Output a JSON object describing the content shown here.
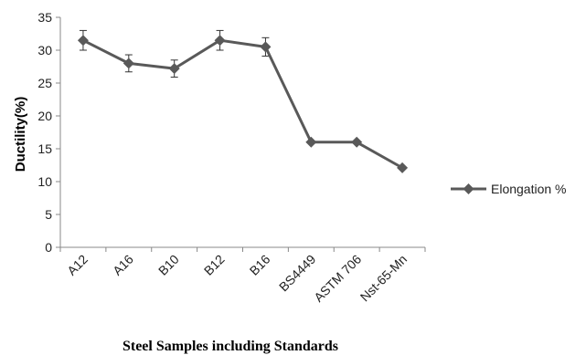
{
  "chart_data": {
    "type": "line",
    "categories": [
      "A12",
      "A16",
      "B10",
      "B12",
      "B16",
      "BS4449",
      "ASTM 706",
      "Nst-65-Mn"
    ],
    "series": [
      {
        "name": "Elongation %",
        "values": [
          31.5,
          28,
          27.2,
          31.5,
          30.5,
          16,
          16,
          12.1
        ],
        "error": [
          1.5,
          1.3,
          1.3,
          1.5,
          1.4,
          0,
          0,
          0
        ]
      }
    ],
    "xlabel": "Steel Samples including Standards",
    "ylabel": "Ductility(%)",
    "ylim": [
      0,
      35
    ],
    "yticks": [
      0,
      5,
      10,
      15,
      20,
      25,
      30,
      35
    ],
    "grid": false,
    "legend_position": "right",
    "colors": {
      "series": "#595959",
      "axis": "#888888"
    }
  }
}
